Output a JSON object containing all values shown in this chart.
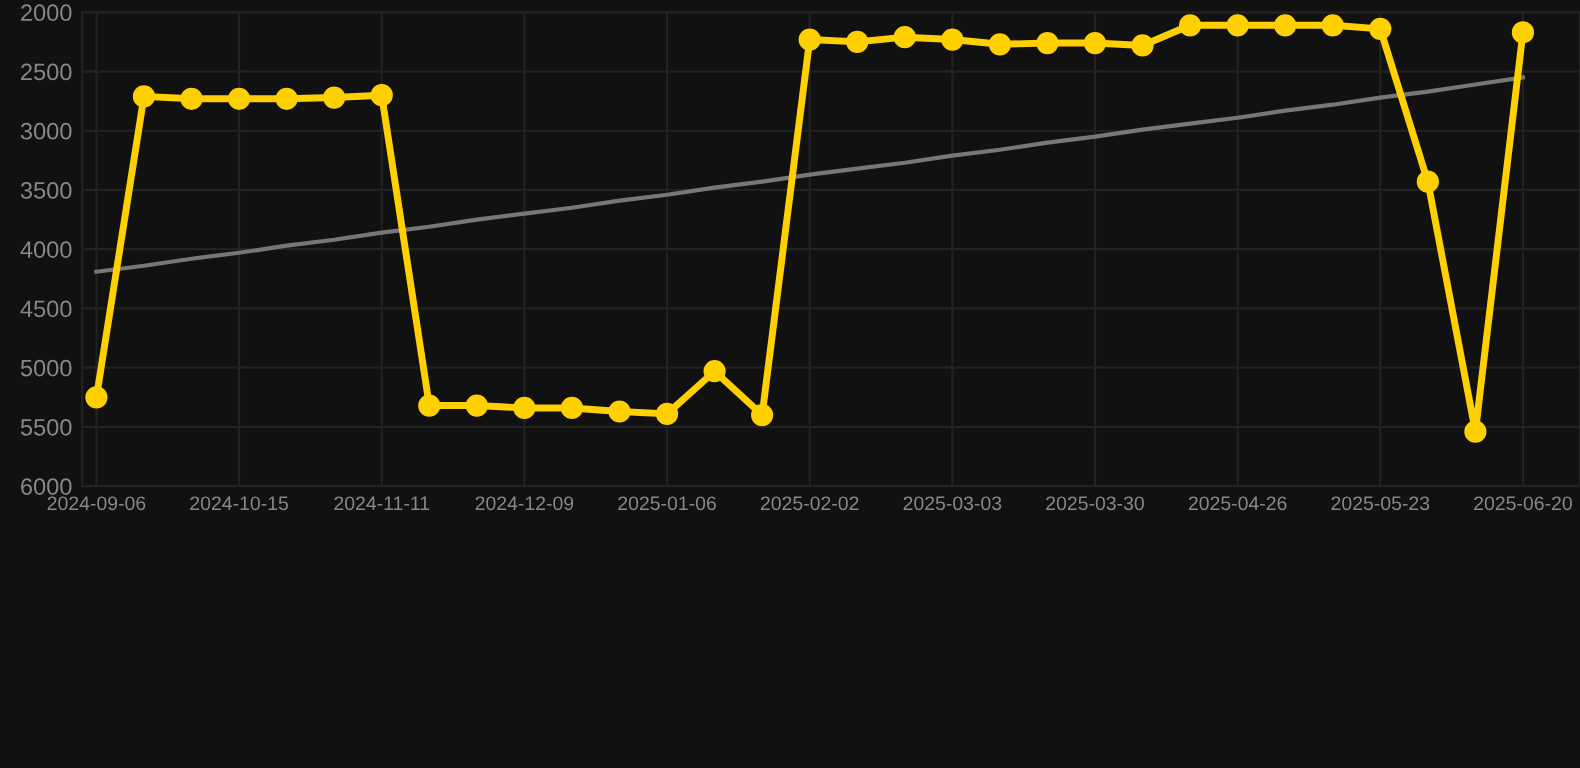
{
  "chart_data": {
    "type": "line",
    "categories": [
      "2024-09-06",
      null,
      null,
      "2024-10-15",
      null,
      null,
      "2024-11-11",
      null,
      null,
      "2024-12-09",
      null,
      null,
      "2025-01-06",
      null,
      null,
      "2025-02-02",
      null,
      null,
      "2025-03-03",
      null,
      null,
      "2025-03-30",
      null,
      null,
      "2025-04-26",
      null,
      null,
      "2025-05-23",
      null,
      null,
      "2025-06-20"
    ],
    "series": [
      {
        "color": "#ffd000",
        "marker": "circle",
        "values": [
          5250,
          2710,
          2730,
          2730,
          2730,
          2720,
          2700,
          5320,
          5320,
          5340,
          5340,
          5370,
          5390,
          5030,
          5400,
          2230,
          2250,
          2210,
          2230,
          2270,
          2260,
          2260,
          2280,
          2110,
          2110,
          2110,
          2110,
          2140,
          3430,
          5540,
          2170
        ]
      },
      {
        "type": "line",
        "color": "#777777",
        "marker": "none",
        "values": [
          4190,
          4140,
          4080,
          4030,
          3970,
          3920,
          3860,
          3810,
          3750,
          3700,
          3650,
          3590,
          3540,
          3480,
          3430,
          3370,
          3320,
          3270,
          3210,
          3160,
          3100,
          3050,
          2990,
          2940,
          2890,
          2830,
          2780,
          2720,
          2670,
          2610,
          2550
        ]
      }
    ],
    "ylim": [
      6000,
      2000
    ],
    "yticks": [
      2000,
      2500,
      3000,
      3500,
      4000,
      4500,
      5000,
      5500,
      6000
    ],
    "grid": true,
    "line_style": "solid"
  }
}
